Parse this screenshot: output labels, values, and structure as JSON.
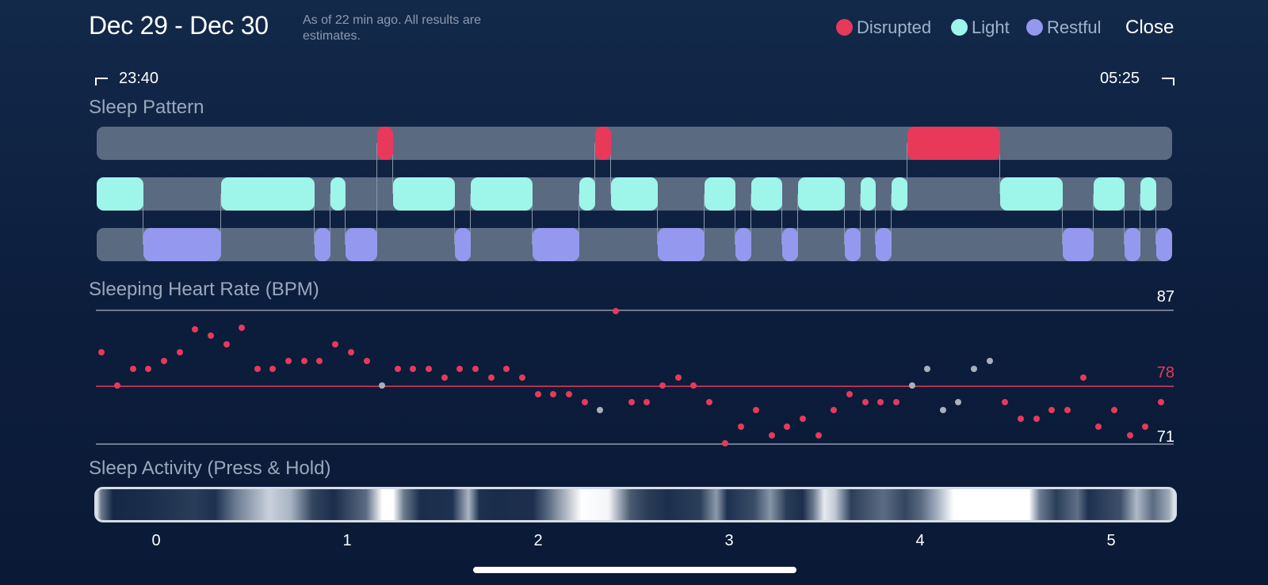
{
  "header": {
    "date_range": "Dec 29 - Dec 30",
    "subtitle": "As of 22 min ago. All results are estimates.",
    "legend": [
      {
        "label": "Disrupted",
        "color": "#e8395a"
      },
      {
        "label": "Light",
        "color": "#9ef5ea"
      },
      {
        "label": "Restful",
        "color": "#9499ef"
      }
    ],
    "close_label": "Close"
  },
  "times": {
    "start": "23:40",
    "end": "05:25"
  },
  "sleep_pattern": {
    "title": "Sleep Pattern",
    "colors": {
      "disrupted": "#e8395a",
      "light": "#9ef5ea",
      "restful": "#9499ef",
      "track": "#5a6a81"
    }
  },
  "heart_rate": {
    "title": "Sleeping Heart Rate (BPM)",
    "max_label": "87",
    "avg_label": "78",
    "min_label": "71",
    "dot_color": "#e8395a",
    "gray_dot_color": "#a9b0ba"
  },
  "activity": {
    "title": "Sleep Activity (Press & Hold)"
  },
  "x_axis": {
    "ticks": [
      "0",
      "1",
      "2",
      "3",
      "4",
      "5"
    ]
  }
}
